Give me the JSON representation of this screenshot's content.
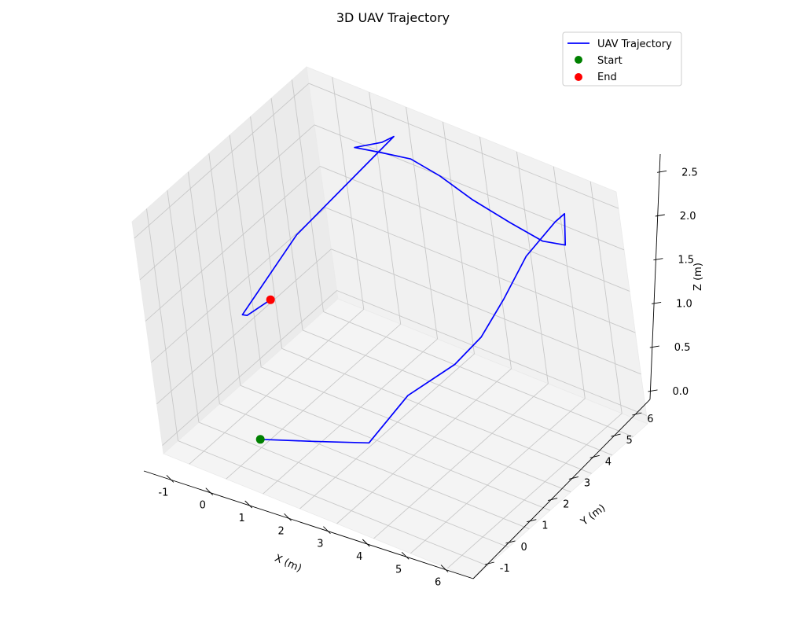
{
  "chart_data": {
    "type": "line3d",
    "title": "3D UAV Trajectory",
    "xlabel": "X (m)",
    "ylabel": "Y (m)",
    "zlabel": "Z (m)",
    "xlim": [
      -1.7,
      6.7
    ],
    "ylim": [
      -1.7,
      6.7
    ],
    "zlim": [
      -0.1,
      2.7
    ],
    "x_ticks": [
      -1,
      0,
      1,
      2,
      3,
      4,
      5,
      6
    ],
    "y_ticks": [
      -1,
      0,
      1,
      2,
      3,
      4,
      5,
      6
    ],
    "z_ticks": [
      0.0,
      0.5,
      1.0,
      1.5,
      2.0,
      2.5
    ],
    "z_tick_labels": [
      "0.0",
      "0.5",
      "1.0",
      "1.5",
      "2.0",
      "2.5"
    ],
    "grid": true,
    "legend_position": "top-right",
    "series": [
      {
        "name": "UAV Trajectory",
        "kind": "line",
        "color": "#0000ff",
        "x": [
          0,
          1.0,
          2.1,
          3.0,
          4.0,
          4.6,
          5.0,
          5.4,
          5.9,
          6.0,
          5.7,
          5.0,
          4.0,
          3.0,
          2.1,
          1.4,
          0.9,
          0.5,
          0.9,
          1.0,
          -0.5,
          -1.1,
          -0.9,
          -0.5
        ],
        "y": [
          0,
          0.7,
          1.5,
          2.1,
          2.8,
          3.2,
          3.8,
          4.4,
          5.1,
          5.4,
          5.7,
          5.8,
          6.0,
          6.0,
          6.1,
          6.0,
          5.5,
          5.0,
          5.6,
          6.0,
          3.5,
          1.6,
          1.5,
          2.0
        ],
        "z": [
          0,
          0,
          0,
          0.6,
          1.0,
          1.35,
          1.75,
          2.2,
          2.55,
          2.6,
          2.1,
          2.0,
          2.0,
          2.1,
          2.2,
          2.3,
          2.4,
          2.5,
          2.5,
          2.5,
          1.6,
          0.95,
          1.0,
          1.15
        ]
      },
      {
        "name": "Start",
        "kind": "point",
        "color": "#008000",
        "x": 0,
        "y": 0,
        "z": 0
      },
      {
        "name": "End",
        "kind": "point",
        "color": "#ff0000",
        "x": -0.5,
        "y": 2.0,
        "z": 1.15
      }
    ]
  }
}
